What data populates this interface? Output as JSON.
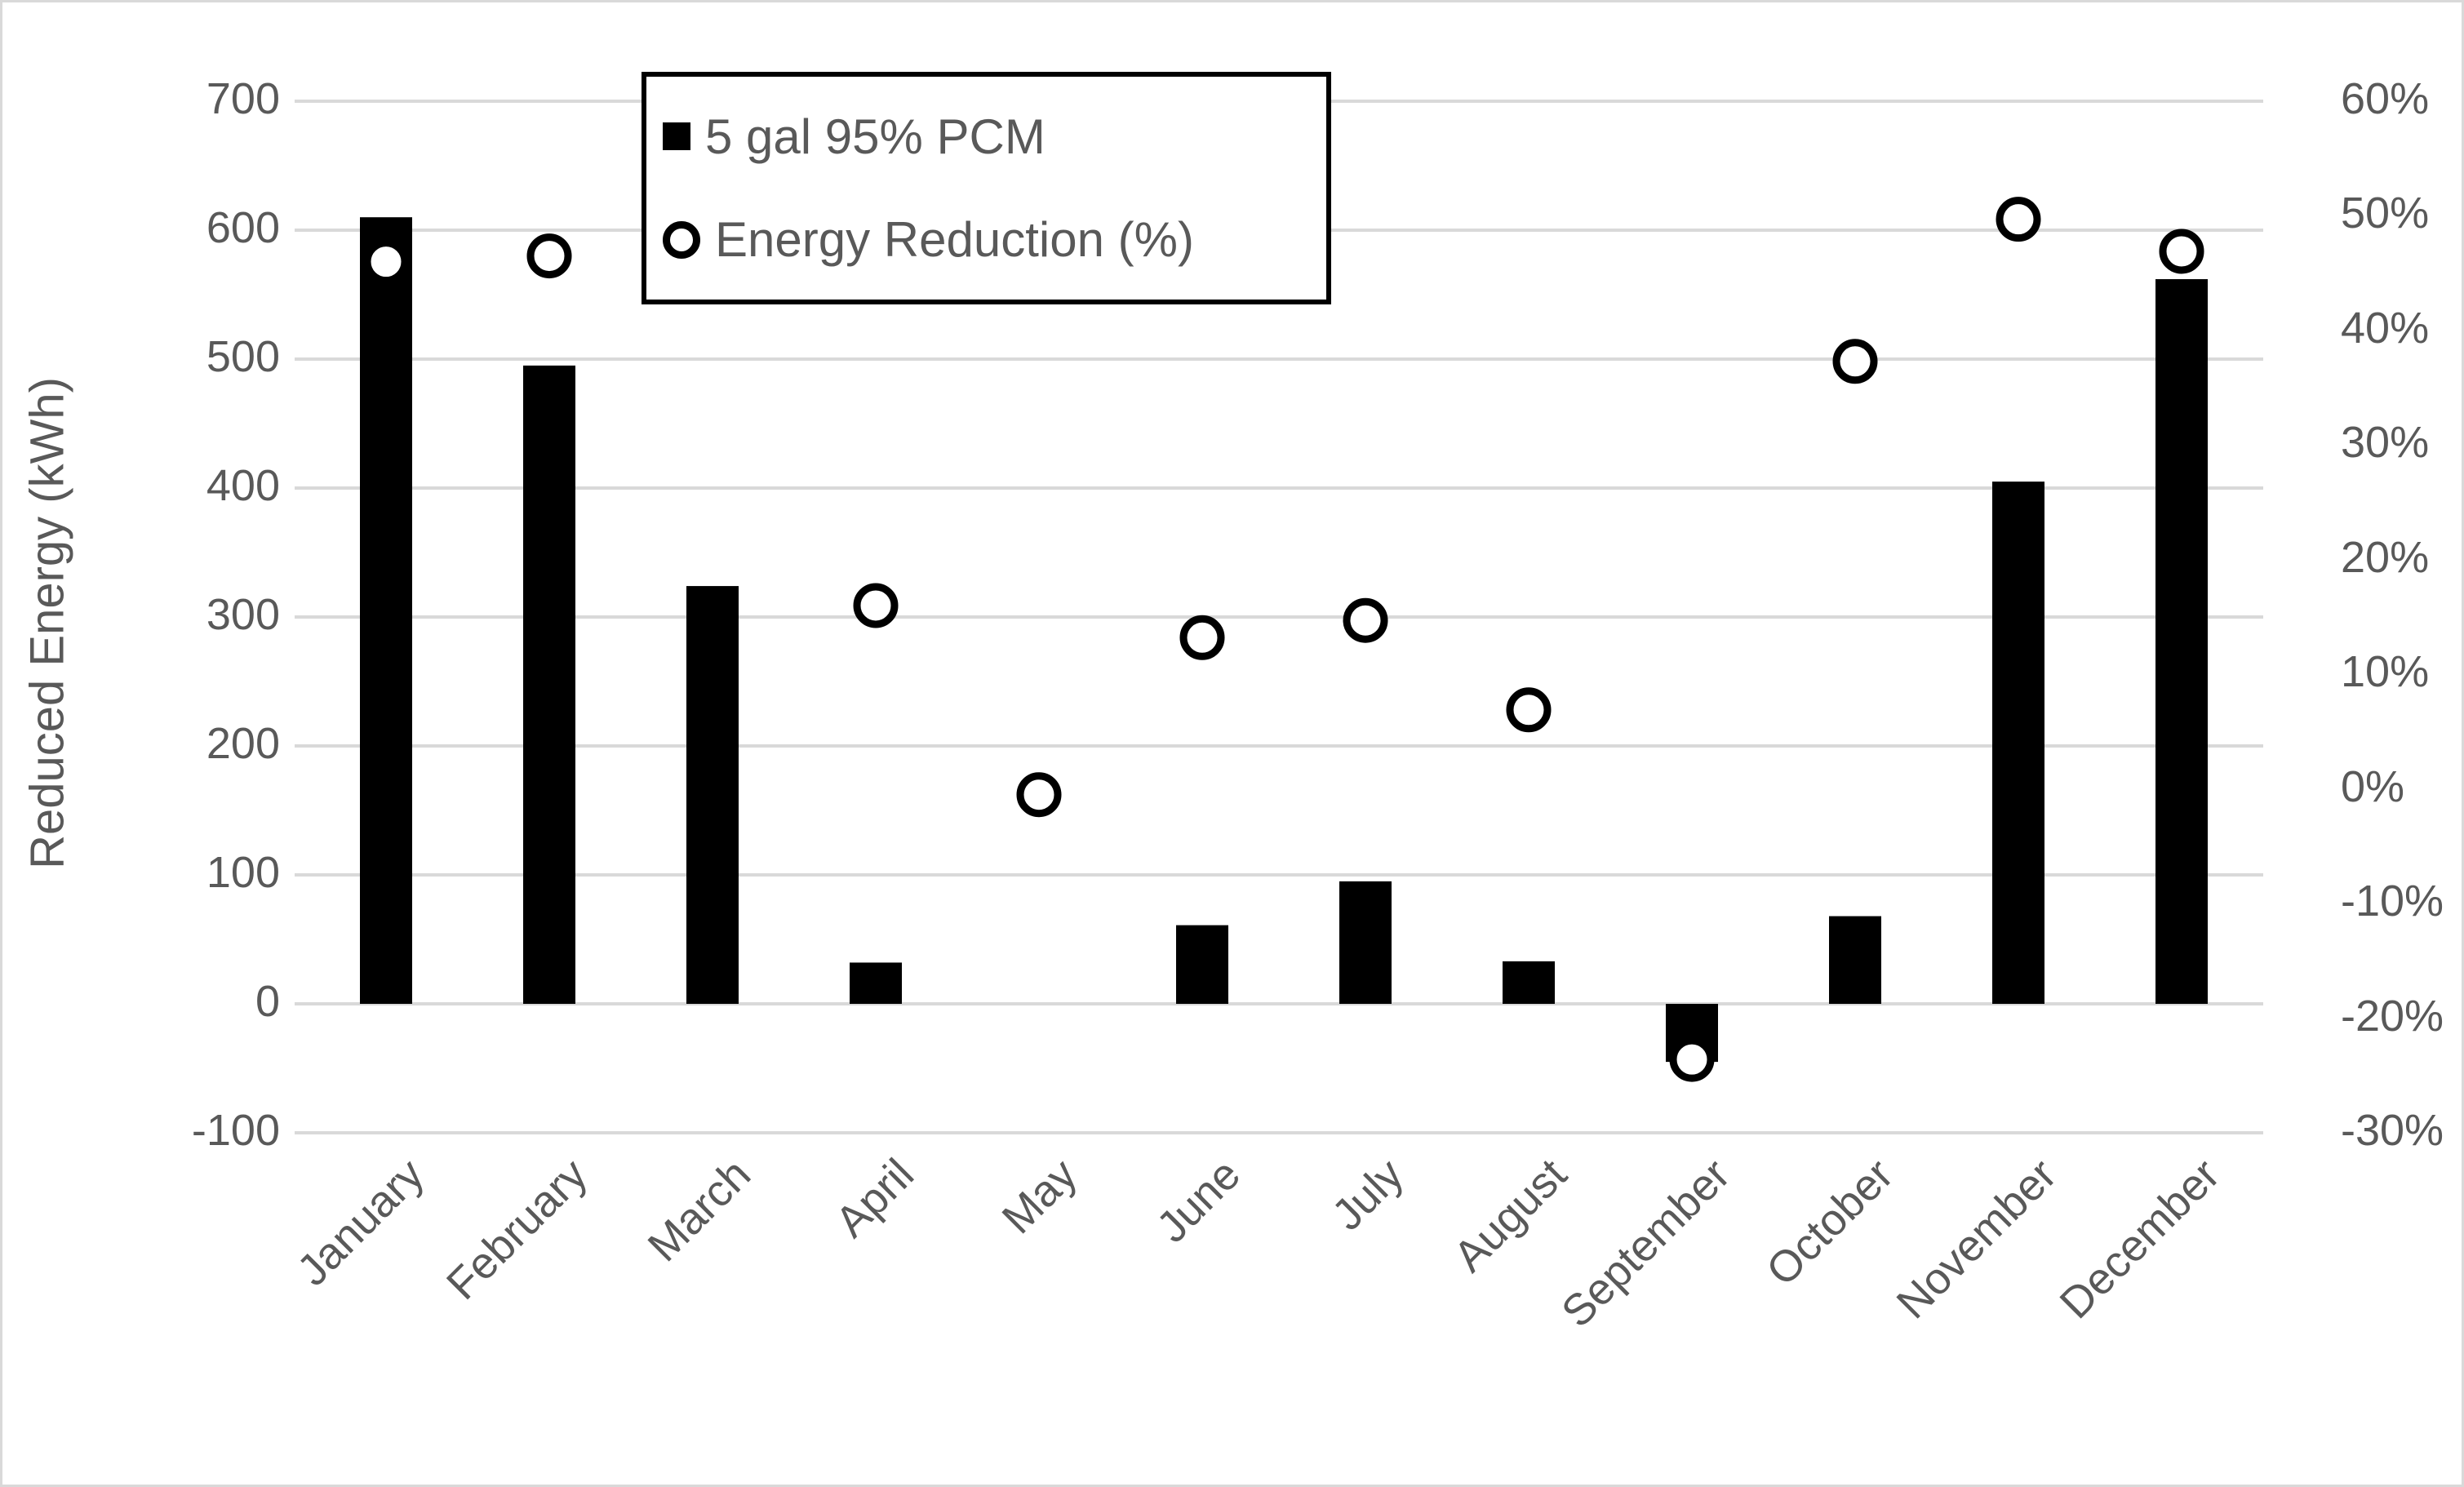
{
  "window": {
    "background_color": "#ffffff",
    "border_color": "#d9d9d9"
  },
  "chart_data": {
    "type": "bar",
    "subtype": "combo-bar-scatter",
    "categories": [
      "January",
      "February",
      "March",
      "April",
      "May",
      "June",
      "July",
      "August",
      "September",
      "October",
      "November",
      "December"
    ],
    "series": [
      {
        "name": "5 gal 95% PCM",
        "type": "bar",
        "axis": "left",
        "color": "#000000",
        "values": [
          610,
          495,
          324,
          32,
          0,
          61,
          95,
          33,
          -45,
          68,
          405,
          562
        ]
      },
      {
        "name": "Energy Reduction (%)",
        "type": "scatter",
        "axis": "right",
        "marker": "open-circle",
        "marker_color": "#000000",
        "marker_fill": "#ffffff",
        "values": [
          46.0,
          46.5,
          null,
          16.0,
          -0.5,
          13.2,
          14.7,
          6.9,
          -23.6,
          37.3,
          49.7,
          46.9
        ]
      }
    ],
    "left_axis": {
      "title": "Reduced  Energy (kWh)",
      "min": -100,
      "max": 700,
      "step": 100,
      "tick_labels": [
        "700",
        "600",
        "500",
        "400",
        "300",
        "200",
        "100",
        "0",
        "-100"
      ]
    },
    "right_axis": {
      "min": -30,
      "max": 60,
      "step": 10,
      "tick_labels": [
        "60%",
        "50%",
        "40%",
        "30%",
        "20%",
        "10%",
        "0%",
        "-10%",
        "-20%",
        "-30%"
      ]
    },
    "grid": true,
    "gridline_color": "#d9d9d9",
    "text_color": "#595959",
    "legend_position": "top-center-inside",
    "legend_entries": [
      "5 gal 95% PCM",
      "Energy Reduction (%)"
    ]
  },
  "legend": {
    "item1": "5 gal 95% PCM",
    "item2": "Energy Reduction (%)"
  },
  "axis": {
    "left_title": "Reduced  Energy (kWh)"
  }
}
